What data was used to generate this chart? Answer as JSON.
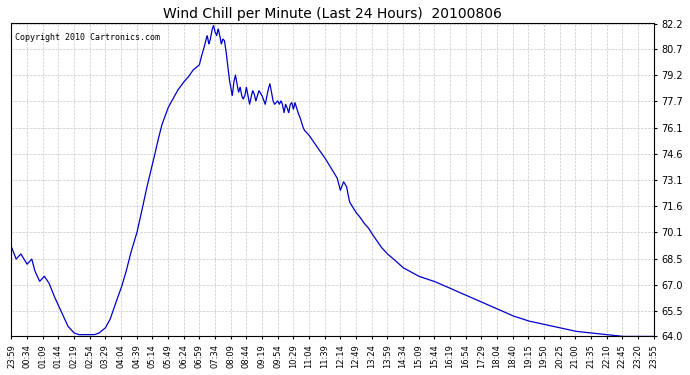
{
  "title": "Wind Chill per Minute (Last 24 Hours)  20100806",
  "copyright": "Copyright 2010 Cartronics.com",
  "line_color": "#0000cc",
  "background_color": "#ffffff",
  "grid_color": "#c8c8c8",
  "ylim": [
    64.0,
    82.2
  ],
  "yticks": [
    64.0,
    65.5,
    67.0,
    68.5,
    70.1,
    71.6,
    73.1,
    74.6,
    76.1,
    77.7,
    79.2,
    80.7,
    82.2
  ],
  "xtick_labels": [
    "23:59",
    "00:34",
    "01:09",
    "01:44",
    "02:19",
    "02:54",
    "03:29",
    "04:04",
    "04:39",
    "05:14",
    "05:49",
    "06:24",
    "06:59",
    "07:34",
    "08:09",
    "08:44",
    "09:19",
    "09:54",
    "10:29",
    "11:04",
    "11:39",
    "12:14",
    "12:49",
    "13:24",
    "13:59",
    "14:34",
    "15:09",
    "15:44",
    "16:19",
    "16:54",
    "17:29",
    "18:04",
    "18:40",
    "19:15",
    "19:50",
    "20:25",
    "21:00",
    "21:35",
    "22:10",
    "22:45",
    "23:20",
    "23:55"
  ],
  "data_keypoints": [
    [
      0.0,
      69.2
    ],
    [
      0.3,
      68.5
    ],
    [
      0.6,
      68.8
    ],
    [
      1.0,
      68.2
    ],
    [
      1.3,
      68.5
    ],
    [
      1.5,
      67.8
    ],
    [
      1.8,
      67.2
    ],
    [
      2.1,
      67.5
    ],
    [
      2.4,
      67.1
    ],
    [
      2.7,
      66.4
    ],
    [
      3.0,
      65.8
    ],
    [
      3.3,
      65.2
    ],
    [
      3.6,
      64.6
    ],
    [
      4.0,
      64.2
    ],
    [
      4.3,
      64.1
    ],
    [
      4.6,
      64.1
    ],
    [
      5.0,
      64.1
    ],
    [
      5.3,
      64.1
    ],
    [
      5.6,
      64.2
    ],
    [
      6.0,
      64.5
    ],
    [
      6.3,
      65.0
    ],
    [
      6.6,
      65.8
    ],
    [
      7.0,
      66.8
    ],
    [
      7.3,
      67.7
    ],
    [
      7.6,
      68.8
    ],
    [
      8.0,
      70.0
    ],
    [
      8.3,
      71.2
    ],
    [
      8.6,
      72.5
    ],
    [
      9.0,
      74.0
    ],
    [
      9.3,
      75.2
    ],
    [
      9.6,
      76.3
    ],
    [
      10.0,
      77.3
    ],
    [
      10.3,
      77.8
    ],
    [
      10.6,
      78.3
    ],
    [
      11.0,
      78.8
    ],
    [
      11.3,
      79.1
    ],
    [
      11.6,
      79.5
    ],
    [
      12.0,
      79.8
    ],
    [
      12.1,
      80.2
    ],
    [
      12.2,
      80.5
    ],
    [
      12.3,
      80.8
    ],
    [
      12.4,
      81.2
    ],
    [
      12.5,
      81.5
    ],
    [
      12.6,
      81.0
    ],
    [
      12.7,
      81.3
    ],
    [
      12.8,
      81.8
    ],
    [
      12.9,
      82.1
    ],
    [
      13.0,
      81.7
    ],
    [
      13.1,
      81.5
    ],
    [
      13.2,
      81.9
    ],
    [
      13.3,
      81.5
    ],
    [
      13.4,
      81.0
    ],
    [
      13.5,
      81.3
    ],
    [
      13.6,
      81.2
    ],
    [
      13.7,
      80.6
    ],
    [
      13.8,
      79.8
    ],
    [
      13.9,
      79.0
    ],
    [
      14.0,
      78.5
    ],
    [
      14.1,
      78.0
    ],
    [
      14.2,
      78.8
    ],
    [
      14.3,
      79.2
    ],
    [
      14.4,
      78.7
    ],
    [
      14.5,
      78.2
    ],
    [
      14.6,
      78.5
    ],
    [
      14.7,
      78.0
    ],
    [
      14.8,
      77.8
    ],
    [
      14.9,
      78.0
    ],
    [
      15.0,
      78.5
    ],
    [
      15.1,
      78.0
    ],
    [
      15.2,
      77.5
    ],
    [
      15.3,
      77.9
    ],
    [
      15.4,
      78.3
    ],
    [
      15.5,
      78.1
    ],
    [
      15.6,
      77.7
    ],
    [
      15.7,
      78.0
    ],
    [
      15.8,
      78.3
    ],
    [
      16.0,
      78.0
    ],
    [
      16.2,
      77.5
    ],
    [
      16.4,
      78.4
    ],
    [
      16.5,
      78.7
    ],
    [
      16.6,
      78.2
    ],
    [
      16.7,
      77.7
    ],
    [
      16.8,
      77.5
    ],
    [
      17.0,
      77.7
    ],
    [
      17.1,
      77.5
    ],
    [
      17.2,
      77.7
    ],
    [
      17.3,
      77.5
    ],
    [
      17.4,
      77.0
    ],
    [
      17.5,
      77.5
    ],
    [
      17.6,
      77.3
    ],
    [
      17.7,
      77.0
    ],
    [
      17.8,
      77.5
    ],
    [
      17.9,
      77.6
    ],
    [
      18.0,
      77.2
    ],
    [
      18.1,
      77.6
    ],
    [
      18.2,
      77.3
    ],
    [
      18.3,
      77.0
    ],
    [
      18.4,
      76.8
    ],
    [
      18.5,
      76.5
    ],
    [
      18.6,
      76.2
    ],
    [
      18.7,
      76.0
    ],
    [
      19.0,
      75.7
    ],
    [
      19.3,
      75.3
    ],
    [
      19.6,
      74.9
    ],
    [
      20.0,
      74.4
    ],
    [
      20.4,
      73.8
    ],
    [
      20.8,
      73.2
    ],
    [
      21.0,
      72.5
    ],
    [
      21.2,
      73.0
    ],
    [
      21.4,
      72.7
    ],
    [
      21.5,
      72.2
    ],
    [
      21.6,
      71.8
    ],
    [
      21.8,
      71.5
    ],
    [
      22.0,
      71.2
    ],
    [
      22.2,
      71.0
    ],
    [
      22.5,
      70.6
    ],
    [
      22.8,
      70.3
    ],
    [
      23.0,
      70.0
    ],
    [
      23.3,
      69.6
    ],
    [
      23.6,
      69.2
    ],
    [
      24.0,
      68.8
    ],
    [
      24.4,
      68.5
    ],
    [
      25.0,
      68.0
    ],
    [
      26.0,
      67.5
    ],
    [
      27.0,
      67.2
    ],
    [
      28.0,
      66.8
    ],
    [
      29.0,
      66.4
    ],
    [
      30.0,
      66.0
    ],
    [
      31.0,
      65.6
    ],
    [
      32.0,
      65.2
    ],
    [
      33.0,
      64.9
    ],
    [
      34.0,
      64.7
    ],
    [
      35.0,
      64.5
    ],
    [
      36.0,
      64.3
    ],
    [
      37.0,
      64.2
    ],
    [
      38.0,
      64.1
    ],
    [
      39.0,
      64.0
    ],
    [
      40.0,
      64.0
    ],
    [
      41.0,
      64.0
    ]
  ]
}
